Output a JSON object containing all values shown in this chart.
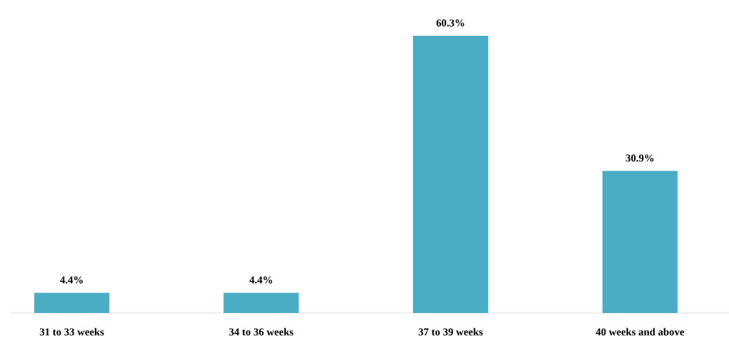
{
  "chart_data": {
    "type": "bar",
    "categories": [
      "31 to 33 weeks",
      "34 to 36 weeks",
      "37 to 39 weeks",
      "40 weeks and above"
    ],
    "values": [
      4.4,
      4.4,
      60.3,
      30.9
    ],
    "value_labels": [
      "4.4%",
      "4.4%",
      "60.3%",
      "30.9%"
    ],
    "color": "#4bacc6"
  }
}
